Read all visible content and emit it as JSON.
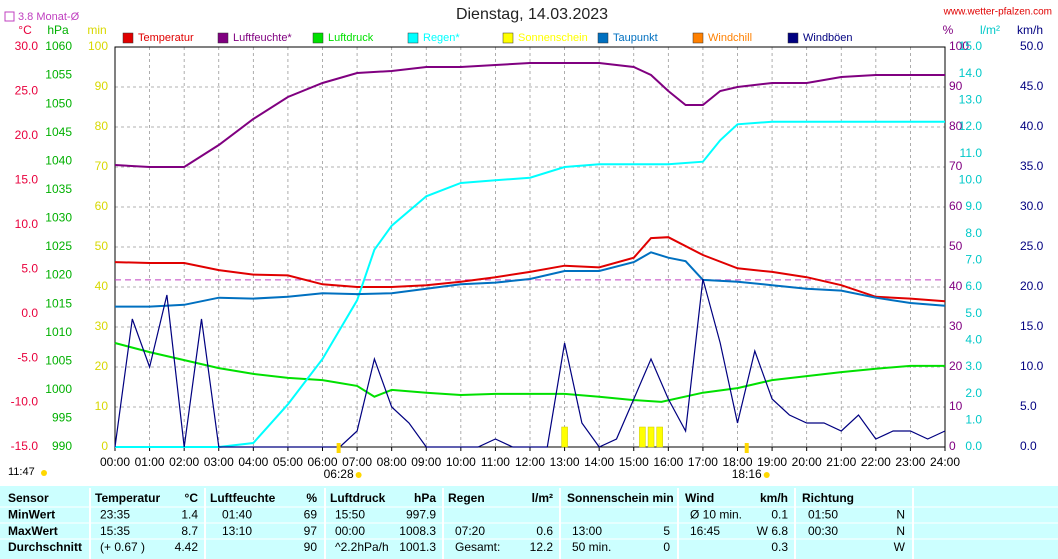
{
  "chart_data": {
    "type": "line",
    "title": "Dienstag, 14.03.2023",
    "site": "www.wetter-pfalzen.com",
    "reference_line": {
      "value": 3.8,
      "label": "3.8 Monat-Ø",
      "color": "#c040c0"
    },
    "xlim": [
      0,
      24
    ],
    "xticks": [
      {
        "value": 0,
        "label": "00:00"
      },
      {
        "value": 1,
        "label": "01:00"
      },
      {
        "value": 2,
        "label": "02:00"
      },
      {
        "value": 3,
        "label": "03:00"
      },
      {
        "value": 4,
        "label": "04:00"
      },
      {
        "value": 5,
        "label": "05:00"
      },
      {
        "value": 6,
        "label": "06:00"
      },
      {
        "value": 7,
        "label": "07:00"
      },
      {
        "value": 8,
        "label": "08:00"
      },
      {
        "value": 9,
        "label": "09:00"
      },
      {
        "value": 10,
        "label": "10:00"
      },
      {
        "value": 11,
        "label": "11:00"
      },
      {
        "value": 12,
        "label": "12:00"
      },
      {
        "value": 13,
        "label": "13:00"
      },
      {
        "value": 14,
        "label": "14:00"
      },
      {
        "value": 15,
        "label": "15:00"
      },
      {
        "value": 16,
        "label": "16:00"
      },
      {
        "value": 17,
        "label": "17:00"
      },
      {
        "value": 18,
        "label": "18:00"
      },
      {
        "value": 19,
        "label": "19:00"
      },
      {
        "value": 20,
        "label": "20:00"
      },
      {
        "value": 21,
        "label": "21:00"
      },
      {
        "value": 22,
        "label": "22:00"
      },
      {
        "value": 23,
        "label": "23:00"
      },
      {
        "value": 24,
        "label": "24:00"
      }
    ],
    "grid": true,
    "axes": {
      "temp": {
        "label": "°C",
        "color": "#e8003c",
        "lim": [
          -15,
          30
        ],
        "ticks": [
          {
            "value": 30,
            "label": "30.0"
          },
          {
            "value": 25,
            "label": "25.0"
          },
          {
            "value": 20,
            "label": "20.0"
          },
          {
            "value": 15,
            "label": "15.0"
          },
          {
            "value": 10,
            "label": "10.0"
          },
          {
            "value": 5,
            "label": "5.0"
          },
          {
            "value": 0,
            "label": "0.0"
          },
          {
            "value": -5,
            "label": "-5.0"
          },
          {
            "value": -10,
            "label": "-10.0"
          },
          {
            "value": -15,
            "label": "-15.0"
          }
        ]
      },
      "pressure": {
        "label": "hPa",
        "color": "#00b000",
        "lim": [
          990,
          1060
        ],
        "ticks": [
          1060,
          1055,
          1050,
          1045,
          1040,
          1035,
          1030,
          1025,
          1020,
          1015,
          1010,
          1005,
          1000,
          995,
          990
        ]
      },
      "minutes": {
        "label": "min",
        "color": "#d8d800",
        "lim": [
          0,
          100
        ],
        "ticks": [
          100,
          90,
          80,
          70,
          60,
          50,
          40,
          30,
          20,
          10,
          0
        ]
      },
      "humidity": {
        "label": "%",
        "color": "#800080",
        "lim": [
          0,
          100
        ],
        "ticks": [
          100,
          90,
          80,
          70,
          60,
          50,
          40,
          30,
          20,
          10,
          0
        ]
      },
      "rain": {
        "label": "l/m²",
        "color": "#00c8c8",
        "lim": [
          0,
          15
        ],
        "ticks": [
          {
            "value": 15,
            "label": "15.0"
          },
          {
            "value": 14,
            "label": "14.0"
          },
          {
            "value": 13,
            "label": "13.0"
          },
          {
            "value": 12,
            "label": "12.0"
          },
          {
            "value": 11,
            "label": "11.0"
          },
          {
            "value": 10,
            "label": "10.0"
          },
          {
            "value": 9,
            "label": "9.0"
          },
          {
            "value": 8,
            "label": "8.0"
          },
          {
            "value": 7,
            "label": "7.0"
          },
          {
            "value": 6,
            "label": "6.0"
          },
          {
            "value": 5,
            "label": "5.0"
          },
          {
            "value": 4,
            "label": "4.0"
          },
          {
            "value": 3,
            "label": "3.0"
          },
          {
            "value": 2,
            "label": "2.0"
          },
          {
            "value": 1,
            "label": "1.0"
          },
          {
            "value": 0,
            "label": "0.0"
          }
        ]
      },
      "wind": {
        "label": "km/h",
        "color": "#000080",
        "lim": [
          0,
          50
        ],
        "ticks": [
          {
            "value": 50,
            "label": "50.0"
          },
          {
            "value": 45,
            "label": "45.0"
          },
          {
            "value": 40,
            "label": "40.0"
          },
          {
            "value": 35,
            "label": "35.0"
          },
          {
            "value": 30,
            "label": "30.0"
          },
          {
            "value": 25,
            "label": "25.0"
          },
          {
            "value": 20,
            "label": "20.0"
          },
          {
            "value": 15,
            "label": "15.0"
          },
          {
            "value": 10,
            "label": "10.0"
          },
          {
            "value": 5,
            "label": "5.0"
          },
          {
            "value": 0,
            "label": "0.0"
          }
        ]
      }
    },
    "series": [
      {
        "name": "Temperatur",
        "color": "#e00000",
        "axis": "temp",
        "x": [
          0,
          1,
          2,
          3,
          4,
          5,
          6,
          7,
          8,
          9,
          10,
          11,
          12,
          13,
          14,
          15,
          15.5,
          16,
          17,
          18,
          19,
          20,
          21,
          22,
          23,
          24
        ],
        "values": [
          5.8,
          5.7,
          5.7,
          4.9,
          4.4,
          4.3,
          3.3,
          3.0,
          3.0,
          3.2,
          3.6,
          4.1,
          4.7,
          5.4,
          5.2,
          6.3,
          8.5,
          8.6,
          6.6,
          5.1,
          4.7,
          4.1,
          3.2,
          1.9,
          1.7,
          1.4
        ]
      },
      {
        "name": "Luftfeuchte*",
        "color": "#800080",
        "axis": "humidity",
        "x": [
          0,
          1,
          2,
          3,
          4,
          5,
          6,
          7,
          8,
          9,
          10,
          11,
          12,
          13,
          14,
          15,
          15.5,
          16,
          16.5,
          17,
          17.5,
          18,
          19,
          20,
          21,
          22,
          23,
          24
        ],
        "values": [
          70.5,
          70,
          70,
          75.5,
          82,
          87.5,
          91,
          93.5,
          94,
          95,
          95,
          95.5,
          96,
          96,
          96,
          95,
          93,
          89,
          85.5,
          85.5,
          89,
          90,
          91,
          91,
          92.5,
          93,
          93,
          93
        ]
      },
      {
        "name": "Luftdruck",
        "color": "#00e000",
        "axis": "pressure",
        "x": [
          0,
          1,
          2,
          3,
          4,
          5,
          6,
          7,
          7.5,
          8,
          9,
          10,
          11,
          12,
          13,
          14,
          15,
          15.8,
          17,
          18,
          19,
          20,
          21,
          22,
          23,
          24
        ],
        "values": [
          1008.2,
          1006.6,
          1005.2,
          1003.8,
          1002.8,
          1002.1,
          1001.7,
          1000.7,
          998.8,
          1000,
          999.5,
          999.1,
          999.3,
          999.3,
          999.3,
          998.8,
          998.2,
          997.9,
          999.5,
          1000.3,
          1001.7,
          1002.4,
          1003.1,
          1003.7,
          1004.2,
          1004.2
        ]
      },
      {
        "name": "Regen*",
        "color": "#00ffff",
        "axis": "rain",
        "x": [
          0,
          1,
          2,
          3,
          4,
          5,
          6,
          7,
          7.5,
          8,
          9,
          10,
          11,
          12,
          13,
          14,
          15,
          16,
          17,
          17.5,
          18,
          19,
          20,
          21,
          22,
          23,
          24
        ],
        "values": [
          0,
          0,
          0,
          0,
          0.15,
          1.6,
          3.3,
          5.5,
          7.4,
          8.3,
          9.4,
          9.9,
          10.0,
          10.1,
          10.5,
          10.6,
          10.6,
          10.6,
          10.7,
          11.5,
          12.1,
          12.2,
          12.2,
          12.2,
          12.2,
          12.2,
          12.2
        ]
      },
      {
        "name": "Sonnenschein",
        "color": "#ffff00",
        "axis": "minutes",
        "type": "bar",
        "x": [
          13.0,
          15.25,
          15.5,
          15.75
        ],
        "values": [
          5,
          5,
          5,
          5
        ]
      },
      {
        "name": "Taupunkt",
        "color": "#0070c0",
        "axis": "temp",
        "x": [
          0,
          1,
          2,
          3,
          4,
          5,
          6,
          7,
          8,
          9,
          10,
          11,
          12,
          13,
          14,
          15,
          15.5,
          16,
          16.5,
          17,
          18,
          19,
          20,
          21,
          22,
          23,
          24
        ],
        "values": [
          0.8,
          0.8,
          1.0,
          1.8,
          1.7,
          1.9,
          2.3,
          2.2,
          2.3,
          2.8,
          3.3,
          3.5,
          3.9,
          4.8,
          4.8,
          5.8,
          6.9,
          6.3,
          5.9,
          3.8,
          3.6,
          3.2,
          2.8,
          2.6,
          1.8,
          1.2,
          0.9
        ]
      },
      {
        "name": "Windchill",
        "color": "#ff8000",
        "axis": "temp"
      },
      {
        "name": "Windböen",
        "color": "#000080",
        "axis": "wind",
        "x": [
          0,
          0.5,
          1,
          1.5,
          2,
          2.5,
          3,
          3.5,
          4,
          4.5,
          5,
          5.5,
          6,
          6.5,
          7,
          7.5,
          8,
          8.5,
          9,
          9.5,
          10,
          10.5,
          11,
          11.5,
          12,
          12.5,
          13,
          13.5,
          14,
          14.5,
          15,
          15.5,
          16,
          16.5,
          17,
          17.5,
          18,
          18.5,
          19,
          19.5,
          20,
          20.5,
          21,
          21.5,
          22,
          22.5,
          23,
          23.5,
          24
        ],
        "values": [
          0,
          16,
          10,
          19,
          0,
          16,
          0,
          0,
          0,
          0,
          0,
          0,
          0,
          0,
          2,
          11,
          5,
          3,
          0,
          0,
          0,
          0,
          1,
          0,
          0,
          0,
          13,
          3,
          0,
          1,
          6,
          11,
          6,
          2,
          21,
          13,
          3,
          12,
          6,
          4,
          3,
          3,
          2,
          4,
          1,
          2,
          2,
          1,
          2
        ]
      }
    ],
    "annotations": {
      "sunrise": {
        "x": 6.4667,
        "label": "06:28"
      },
      "sunset": {
        "x": 18.2667,
        "label": "18:16"
      },
      "daylength": "11:47"
    }
  },
  "table": {
    "rows": [
      [
        "Sensor",
        "Temperatur",
        "°C",
        "Luftfeuchte",
        "%",
        "Luftdruck",
        "hPa",
        "Regen",
        "l/m²",
        "Sonnenschein min",
        null,
        "Wind",
        "km/h",
        "Richtung",
        null
      ],
      [
        "MinWert",
        "23:35",
        "1.4",
        "01:40",
        "69",
        "15:50",
        "997.9",
        null,
        null,
        null,
        null,
        "Ø 10 min.",
        "0.1",
        "01:50",
        "N"
      ],
      [
        "MaxWert",
        "15:35",
        "8.7",
        "13:10",
        "97",
        "00:00",
        "1008.3",
        "07:20",
        "0.6",
        "13:00",
        "5",
        "16:45",
        "W 6.8",
        "00:30",
        "N"
      ],
      [
        "Durchschnitt",
        "(+ 0.67 )",
        "4.42",
        null,
        "90",
        "^2.2hPa/h",
        "1001.3",
        "Gesamt:",
        "12.2",
        "50 min.",
        "0",
        null,
        "0.3",
        null,
        "W"
      ]
    ]
  }
}
